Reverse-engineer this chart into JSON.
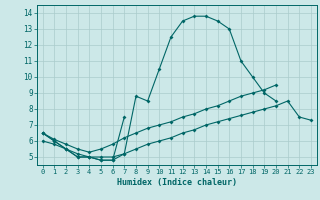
{
  "xlabel": "Humidex (Indice chaleur)",
  "bg_color": "#cce8e8",
  "grid_color": "#aacccc",
  "line_color": "#006666",
  "xlim": [
    -0.5,
    23.5
  ],
  "ylim": [
    4.5,
    14.5
  ],
  "xticks": [
    0,
    1,
    2,
    3,
    4,
    5,
    6,
    7,
    8,
    9,
    10,
    11,
    12,
    13,
    14,
    15,
    16,
    17,
    18,
    19,
    20,
    21,
    22,
    23
  ],
  "yticks": [
    5,
    6,
    7,
    8,
    9,
    10,
    11,
    12,
    13,
    14
  ],
  "line1_x": [
    0,
    1,
    2,
    3,
    4,
    5,
    6,
    7,
    8,
    9,
    10,
    11,
    12,
    13,
    14,
    15,
    16,
    17,
    18,
    19,
    20
  ],
  "line1_y": [
    6.5,
    6.0,
    5.5,
    5.0,
    5.0,
    4.8,
    4.8,
    5.2,
    8.8,
    8.5,
    10.5,
    12.5,
    13.5,
    13.8,
    13.8,
    13.5,
    13.0,
    11.0,
    10.0,
    9.0,
    8.5
  ],
  "line2_x": [
    0,
    1,
    2,
    3,
    4,
    5,
    6,
    7
  ],
  "line2_y": [
    6.5,
    6.0,
    5.5,
    5.0,
    5.0,
    4.8,
    4.8,
    7.5
  ],
  "line3_x": [
    0,
    1,
    2,
    3,
    4,
    5,
    6,
    7,
    8,
    9,
    10,
    11,
    12,
    13,
    14,
    15,
    16,
    17,
    18,
    19,
    20
  ],
  "line3_y": [
    6.5,
    6.1,
    5.8,
    5.5,
    5.3,
    5.5,
    5.8,
    6.2,
    6.5,
    6.8,
    7.0,
    7.2,
    7.5,
    7.7,
    8.0,
    8.2,
    8.5,
    8.8,
    9.0,
    9.2,
    9.5
  ],
  "line4_x": [
    0,
    1,
    2,
    3,
    4,
    5,
    6,
    7,
    8,
    9,
    10,
    11,
    12,
    13,
    14,
    15,
    16,
    17,
    18,
    19,
    20,
    21,
    22,
    23
  ],
  "line4_y": [
    6.0,
    5.8,
    5.5,
    5.2,
    5.0,
    5.0,
    5.0,
    5.2,
    5.5,
    5.8,
    6.0,
    6.2,
    6.5,
    6.7,
    7.0,
    7.2,
    7.4,
    7.6,
    7.8,
    8.0,
    8.2,
    8.5,
    7.5,
    7.3
  ]
}
